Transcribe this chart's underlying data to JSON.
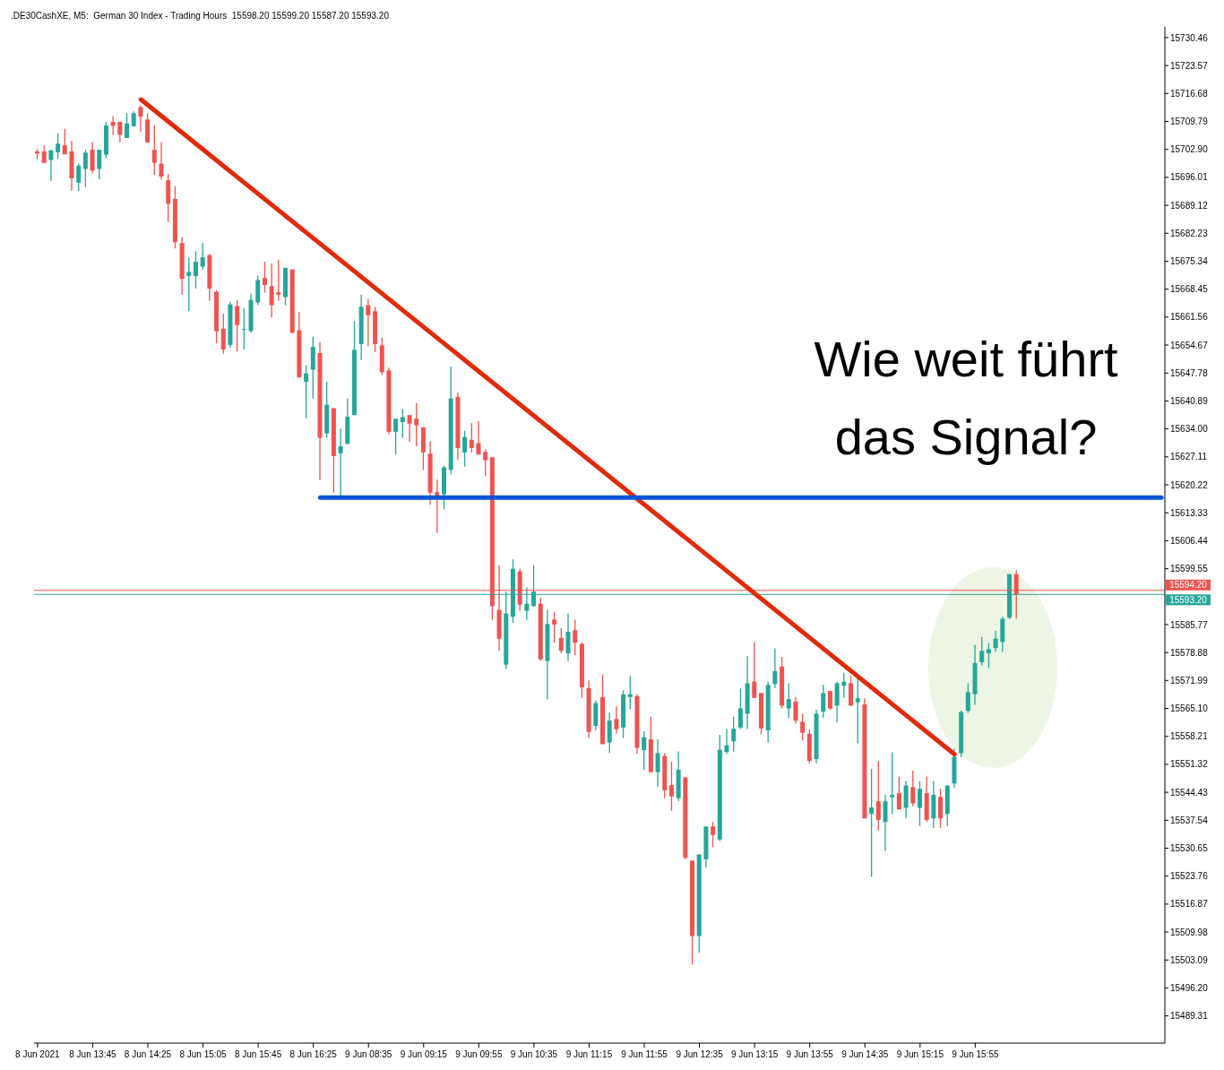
{
  "chart_data": {
    "type": "candlestick",
    "title": ".DE30CashXE, M5:  German 30 Index - Trading Hours  15598.20 15599.20 15587.20 15593.20",
    "categories": [
      "8 Jun 2021",
      null,
      null,
      null,
      null,
      null,
      null,
      null,
      "8 Jun 13:45",
      null,
      null,
      null,
      null,
      null,
      null,
      null,
      "8 Jun 14:25",
      null,
      null,
      null,
      null,
      null,
      null,
      null,
      "8 Jun 15:05",
      null,
      null,
      null,
      null,
      null,
      null,
      null,
      "8 Jun 15:45",
      null,
      null,
      null,
      null,
      null,
      null,
      null,
      "8 Jun 16:25",
      null,
      null,
      null,
      null,
      null,
      null,
      null,
      "9 Jun 08:35",
      null,
      null,
      null,
      null,
      null,
      null,
      null,
      "9 Jun 09:15",
      null,
      null,
      null,
      null,
      null,
      null,
      null,
      "9 Jun 09:55",
      null,
      null,
      null,
      null,
      null,
      null,
      null,
      "9 Jun 10:35",
      null,
      null,
      null,
      null,
      null,
      null,
      null,
      "9 Jun 11:15",
      null,
      null,
      null,
      null,
      null,
      null,
      null,
      "9 Jun 11:55",
      null,
      null,
      null,
      null,
      null,
      null,
      null,
      "9 Jun 12:35",
      null,
      null,
      null,
      null,
      null,
      null,
      null,
      "9 Jun 13:15",
      null,
      null,
      null,
      null,
      null,
      null,
      null,
      "9 Jun 13:55",
      null,
      null,
      null,
      null,
      null,
      null,
      null,
      "9 Jun 14:35",
      null,
      null,
      null,
      null,
      null,
      null,
      null,
      "9 Jun 15:15",
      null,
      null,
      null,
      null,
      null,
      null,
      null,
      "9 Jun 15:55",
      null,
      null,
      null,
      null,
      null,
      null,
      null,
      null,
      null,
      null,
      null,
      null,
      null,
      null,
      null,
      null,
      null,
      null,
      null,
      null,
      null,
      null,
      null,
      null,
      null,
      null,
      null
    ],
    "ohlc": [
      [
        15702.4,
        15703.0,
        15700.4,
        15701.9
      ],
      [
        15702.4,
        15703.9,
        15699.6,
        15699.6
      ],
      [
        15700.3,
        15702.7,
        15695.1,
        15702.7
      ],
      [
        15702.2,
        15706.9,
        15700.6,
        15704.3
      ],
      [
        15703.9,
        15708.0,
        15701.7,
        15701.7
      ],
      [
        15702.4,
        15705.0,
        15692.7,
        15695.8
      ],
      [
        15694.7,
        15699.4,
        15692.7,
        15698.9
      ],
      [
        15698.1,
        15702.8,
        15693.6,
        15702.1
      ],
      [
        15702.8,
        15704.7,
        15697.0,
        15697.7
      ],
      [
        15698.1,
        15702.8,
        15695.5,
        15702.8
      ],
      [
        15701.6,
        15709.7,
        15700.7,
        15708.8
      ],
      [
        15709.7,
        15711.2,
        15706.5,
        15708.7
      ],
      [
        15709.7,
        15709.7,
        15704.6,
        15706.5
      ],
      [
        15705.7,
        15711.8,
        15705.7,
        15709.3
      ],
      [
        15708.6,
        15712.3,
        15708.6,
        15711.8
      ],
      [
        15713.3,
        15713.8,
        15707.2,
        15711.0
      ],
      [
        15710.3,
        15711.8,
        15704.6,
        15704.6
      ],
      [
        15702.8,
        15708.8,
        15696.6,
        15699.6
      ],
      [
        15699.4,
        15704.7,
        15695.5,
        15696.2
      ],
      [
        15695.3,
        15696.8,
        15685.0,
        15689.5
      ],
      [
        15690.7,
        15693.8,
        15678.5,
        15680.0
      ],
      [
        15679.8,
        15681.3,
        15667.1,
        15671.0
      ],
      [
        15671.7,
        15676.3,
        15663.0,
        15672.7
      ],
      [
        15671.7,
        15677.8,
        15668.6,
        15675.2
      ],
      [
        15674.0,
        15679.8,
        15673.2,
        15676.3
      ],
      [
        15676.8,
        15677.2,
        15665.6,
        15668.6
      ],
      [
        15667.8,
        15668.2,
        15655.1,
        15658.1
      ],
      [
        15658.7,
        15662.4,
        15652.5,
        15653.6
      ],
      [
        15654.7,
        15665.3,
        15654.0,
        15664.7
      ],
      [
        15664.3,
        15665.8,
        15653.1,
        15659.6
      ],
      [
        15658.5,
        15663.8,
        15653.6,
        15658.6
      ],
      [
        15658.1,
        15667.3,
        15657.7,
        15665.8
      ],
      [
        15665.2,
        15671.8,
        15664.5,
        15670.7
      ],
      [
        15671.2,
        15675.2,
        15667.6,
        15669.5
      ],
      [
        15669.2,
        15674.8,
        15661.5,
        15664.5
      ],
      [
        15667.7,
        15675.7,
        15665.6,
        15667.1
      ],
      [
        15666.5,
        15673.7,
        15664.5,
        15673.7
      ],
      [
        15673.3,
        15673.3,
        15657.7,
        15657.7
      ],
      [
        15658.3,
        15662.8,
        15646.7,
        15646.7
      ],
      [
        15645.6,
        15649.7,
        15636.6,
        15647.7
      ],
      [
        15648.6,
        15656.7,
        15641.5,
        15654.2
      ],
      [
        15652.7,
        15655.4,
        15621.3,
        15631.8
      ],
      [
        15632.9,
        15645.6,
        15631.8,
        15640.0
      ],
      [
        15639.1,
        15639.1,
        15618.3,
        15627.3
      ],
      [
        15628.0,
        15634.1,
        15617.4,
        15629.7
      ],
      [
        15630.3,
        15641.5,
        15630.3,
        15637.0
      ],
      [
        15637.4,
        15660.6,
        15637.4,
        15653.5
      ],
      [
        15654.9,
        15667.1,
        15651.0,
        15664.1
      ],
      [
        15664.5,
        15666.0,
        15654.4,
        15662.0
      ],
      [
        15663.0,
        15664.1,
        15652.9,
        15654.9
      ],
      [
        15654.6,
        15656.5,
        15647.3,
        15648.0
      ],
      [
        15648.4,
        15649.1,
        15632.7,
        15633.3
      ],
      [
        15633.3,
        15636.5,
        15627.7,
        15636.5
      ],
      [
        15635.7,
        15638.9,
        15631.8,
        15636.9
      ],
      [
        15637.4,
        15637.4,
        15630.8,
        15635.3
      ],
      [
        15636.5,
        15640.4,
        15629.7,
        15634.9
      ],
      [
        15634.4,
        15634.4,
        15623.9,
        15628.2
      ],
      [
        15627.9,
        15631.0,
        15615.3,
        15618.3
      ],
      [
        15618.4,
        15621.5,
        15608.4,
        15617.6
      ],
      [
        15617.9,
        15624.9,
        15614.2,
        15624.5
      ],
      [
        15623.9,
        15649.4,
        15622.8,
        15641.5
      ],
      [
        15641.9,
        15643.0,
        15626.3,
        15629.3
      ],
      [
        15628.2,
        15633.5,
        15624.7,
        15632.0
      ],
      [
        15631.3,
        15635.4,
        15628.2,
        15629.3
      ],
      [
        15630.5,
        15635.9,
        15627.7,
        15627.7
      ],
      [
        15628.3,
        15629.0,
        15622.4,
        15626.3
      ],
      [
        15627.0,
        15627.0,
        15586.9,
        15590.3
      ],
      [
        15589.4,
        15600.4,
        15579.3,
        15582.3
      ],
      [
        15575.9,
        15593.9,
        15574.8,
        15588.5
      ],
      [
        15587.7,
        15601.9,
        15586.2,
        15599.5
      ],
      [
        15598.9,
        15599.5,
        15589.2,
        15590.7
      ],
      [
        15589.2,
        15595.0,
        15586.9,
        15590.9
      ],
      [
        15590.3,
        15600.4,
        15590.3,
        15593.9
      ],
      [
        15590.9,
        15592.4,
        15576.8,
        15577.2
      ],
      [
        15576.8,
        15589.4,
        15567.3,
        15585.9
      ],
      [
        15587.0,
        15588.9,
        15581.3,
        15585.8
      ],
      [
        15582.5,
        15584.9,
        15578.7,
        15579.3
      ],
      [
        15578.7,
        15588.5,
        15576.8,
        15584.0
      ],
      [
        15584.4,
        15587.0,
        15578.2,
        15581.3
      ],
      [
        15581.0,
        15581.4,
        15567.7,
        15570.3
      ],
      [
        15570.1,
        15572.0,
        15557.8,
        15559.3
      ],
      [
        15560.8,
        15567.1,
        15559.7,
        15566.4
      ],
      [
        15567.9,
        15573.5,
        15556.3,
        15556.3
      ],
      [
        15556.7,
        15564.1,
        15554.1,
        15562.1
      ],
      [
        15562.5,
        15565.6,
        15558.9,
        15560.0
      ],
      [
        15560.4,
        15569.6,
        15557.8,
        15568.6
      ],
      [
        15567.9,
        15573.1,
        15564.9,
        15568.6
      ],
      [
        15568.1,
        15568.7,
        15553.9,
        15555.4
      ],
      [
        15554.8,
        15559.5,
        15549.9,
        15558.0
      ],
      [
        15557.5,
        15563.1,
        15549.4,
        15549.4
      ],
      [
        15549.4,
        15557.5,
        15545.8,
        15554.1
      ],
      [
        15553.4,
        15554.1,
        15543.0,
        15544.9
      ],
      [
        15546.2,
        15551.9,
        15539.9,
        15543.4
      ],
      [
        15543.0,
        15554.5,
        15542.3,
        15550.0
      ],
      [
        15548.1,
        15548.1,
        15527.9,
        15528.3
      ],
      [
        15527.6,
        15527.6,
        15501.9,
        15509.0
      ],
      [
        15509.0,
        15529.1,
        15504.9,
        15529.1
      ],
      [
        15527.9,
        15536.0,
        15525.9,
        15536.0
      ],
      [
        15536.0,
        15537.1,
        15530.9,
        15533.9
      ],
      [
        15532.8,
        15558.6,
        15532.4,
        15554.9
      ],
      [
        15554.4,
        15560.1,
        15553.9,
        15556.0
      ],
      [
        15557.0,
        15563.1,
        15554.4,
        15560.1
      ],
      [
        15560.4,
        15570.0,
        15560.0,
        15565.1
      ],
      [
        15563.8,
        15578.0,
        15560.0,
        15571.3
      ],
      [
        15571.7,
        15581.4,
        15567.7,
        15567.7
      ],
      [
        15568.9,
        15568.9,
        15558.7,
        15560.2
      ],
      [
        15559.7,
        15571.7,
        15556.7,
        15570.9
      ],
      [
        15571.1,
        15579.9,
        15570.1,
        15574.3
      ],
      [
        15575.4,
        15577.8,
        15565.1,
        15565.8
      ],
      [
        15565.1,
        15571.3,
        15562.8,
        15567.4
      ],
      [
        15566.8,
        15567.9,
        15561.3,
        15562.1
      ],
      [
        15561.8,
        15563.8,
        15557.2,
        15559.1
      ],
      [
        15558.8,
        15559.9,
        15551.6,
        15552.2
      ],
      [
        15552.6,
        15564.8,
        15551.6,
        15563.8
      ],
      [
        15564.3,
        15570.9,
        15562.8,
        15568.9
      ],
      [
        15569.4,
        15569.4,
        15564.7,
        15565.1
      ],
      [
        15565.8,
        15571.7,
        15561.7,
        15571.3
      ],
      [
        15570.7,
        15573.9,
        15567.7,
        15571.7
      ],
      [
        15571.3,
        15573.2,
        15565.8,
        15565.8
      ],
      [
        15566.6,
        15572.6,
        15556.5,
        15567.6
      ],
      [
        15566.1,
        15567.6,
        15538.0,
        15538.0
      ],
      [
        15539.1,
        15550.2,
        15523.6,
        15540.7
      ],
      [
        15542.2,
        15552.1,
        15535.0,
        15537.6
      ],
      [
        15537.1,
        15543.8,
        15530.0,
        15542.2
      ],
      [
        15543.2,
        15554.3,
        15539.1,
        15543.8
      ],
      [
        15544.2,
        15548.3,
        15540.2,
        15540.2
      ],
      [
        15540.6,
        15547.2,
        15538.0,
        15546.1
      ],
      [
        15545.7,
        15549.8,
        15541.0,
        15541.7
      ],
      [
        15540.6,
        15547.2,
        15536.1,
        15545.3
      ],
      [
        15544.2,
        15548.3,
        15537.1,
        15537.6
      ],
      [
        15538.0,
        15547.2,
        15535.6,
        15543.8
      ],
      [
        15543.3,
        15545.3,
        15535.6,
        15538.0
      ],
      [
        15539.1,
        15546.1,
        15536.1,
        15546.1
      ],
      [
        15546.6,
        15555.2,
        15545.5,
        15553.2
      ],
      [
        15554.1,
        15564.6,
        15553.1,
        15564.2
      ],
      [
        15564.5,
        15571.3,
        15564.0,
        15569.1
      ],
      [
        15568.6,
        15580.8,
        15566.0,
        15576.3
      ],
      [
        15576.5,
        15582.7,
        15575.7,
        15579.3
      ],
      [
        15578.7,
        15581.2,
        15575.0,
        15579.7
      ],
      [
        15580.0,
        15584.2,
        15579.1,
        15582.3
      ],
      [
        15581.5,
        15587.7,
        15579.1,
        15587.2
      ],
      [
        15587.5,
        15598.2,
        15587.1,
        15598.2
      ],
      [
        15598.2,
        15599.2,
        15587.2,
        15593.2
      ],
      null,
      null,
      null,
      null,
      null,
      null,
      null,
      null,
      null,
      null,
      null,
      null,
      null,
      null,
      null,
      null,
      null,
      null,
      null,
      null,
      null
    ],
    "colors": [
      "#ef5350",
      "#ef5350",
      "#26a69a",
      "#26a69a",
      "#ef5350",
      "#ef5350",
      "#26a69a",
      "#26a69a",
      "#ef5350",
      "#26a69a",
      "#26a69a",
      "#ef5350",
      "#ef5350",
      "#26a69a",
      "#26a69a",
      "#ef5350",
      "#ef5350",
      "#ef5350",
      "#ef5350",
      "#ef5350",
      "#ef5350",
      "#ef5350",
      "#26a69a",
      "#26a69a",
      "#26a69a",
      "#ef5350",
      "#ef5350",
      "#ef5350",
      "#26a69a",
      "#ef5350",
      "#26a69a",
      "#26a69a",
      "#26a69a",
      "#ef5350",
      "#ef5350",
      "#ef5350",
      "#26a69a",
      "#ef5350",
      "#ef5350",
      "#26a69a",
      "#26a69a",
      "#ef5350",
      "#26a69a",
      "#ef5350",
      "#26a69a",
      "#26a69a",
      "#26a69a",
      "#26a69a",
      "#ef5350",
      "#ef5350",
      "#ef5350",
      "#ef5350",
      "#26a69a",
      "#26a69a",
      "#ef5350",
      "#ef5350",
      "#ef5350",
      "#ef5350",
      "#ef5350",
      "#26a69a",
      "#26a69a",
      "#ef5350",
      "#26a69a",
      "#ef5350",
      "#ef5350",
      "#ef5350",
      "#ef5350",
      "#ef5350",
      "#26a69a",
      "#26a69a",
      "#ef5350",
      "#26a69a",
      "#26a69a",
      "#ef5350",
      "#26a69a",
      "#ef5350",
      "#ef5350",
      "#26a69a",
      "#ef5350",
      "#ef5350",
      "#ef5350",
      "#26a69a",
      "#ef5350",
      "#26a69a",
      "#ef5350",
      "#26a69a",
      "#26a69a",
      "#ef5350",
      "#26a69a",
      "#ef5350",
      "#26a69a",
      "#ef5350",
      "#ef5350",
      "#26a69a",
      "#ef5350",
      "#ef5350",
      "#26a69a",
      "#26a69a",
      "#ef5350",
      "#26a69a",
      "#26a69a",
      "#26a69a",
      "#26a69a",
      "#26a69a",
      "#ef5350",
      "#ef5350",
      "#26a69a",
      "#26a69a",
      "#ef5350",
      "#26a69a",
      "#ef5350",
      "#ef5350",
      "#ef5350",
      "#26a69a",
      "#26a69a",
      "#ef5350",
      "#26a69a",
      "#26a69a",
      "#ef5350",
      "#26a69a",
      "#ef5350",
      "#26a69a",
      "#ef5350",
      "#26a69a",
      "#26a69a",
      "#ef5350",
      "#26a69a",
      "#ef5350",
      "#26a69a",
      "#ef5350",
      "#26a69a",
      "#ef5350",
      "#26a69a",
      "#26a69a",
      "#26a69a",
      "#26a69a",
      "#26a69a",
      "#26a69a",
      "#26a69a",
      "#26a69a",
      "#26a69a",
      "#26a69a",
      "#ef5350",
      null,
      null,
      null,
      null,
      null,
      null,
      null,
      null,
      null,
      null,
      null,
      null,
      null,
      null,
      null,
      null,
      null,
      null,
      null,
      null,
      null
    ],
    "series": [
      {
        "type": "line",
        "color": "#e22a0a",
        "values": [
          null,
          null,
          null,
          null,
          null,
          null,
          null,
          null,
          null,
          null,
          null,
          null,
          null,
          null,
          null,
          15715.2,
          null,
          null,
          null,
          null,
          null,
          null,
          null,
          null,
          null,
          null,
          null,
          null,
          null,
          null,
          null,
          null,
          null,
          null,
          null,
          null,
          null,
          null,
          null,
          null,
          null,
          null,
          null,
          null,
          null,
          null,
          null,
          null,
          null,
          null,
          null,
          null,
          null,
          null,
          null,
          null,
          null,
          null,
          null,
          null,
          null,
          null,
          null,
          null,
          null,
          null,
          null,
          null,
          null,
          null,
          null,
          null,
          null,
          null,
          null,
          null,
          null,
          null,
          null,
          null,
          null,
          null,
          null,
          null,
          null,
          null,
          null,
          null,
          null,
          null,
          null,
          null,
          null,
          null,
          null,
          null,
          null,
          null,
          null,
          null,
          null,
          null,
          null,
          null,
          null,
          null,
          null,
          null,
          null,
          null,
          null,
          null,
          null,
          null,
          null,
          null,
          null,
          null,
          null,
          null,
          null,
          null,
          null,
          null,
          null,
          null,
          null,
          null,
          null,
          null,
          null,
          null,
          null,
          15553.8,
          null,
          null,
          null,
          null,
          null,
          null,
          null,
          null,
          null,
          null,
          null,
          null,
          null,
          null,
          null,
          null,
          null,
          null,
          null,
          null,
          null,
          null,
          null,
          null,
          null,
          null,
          null,
          null,
          null,
          null
        ]
      },
      {
        "type": "line",
        "color": "#0a55d6",
        "values": [
          null,
          null,
          null,
          null,
          null,
          null,
          null,
          null,
          null,
          null,
          null,
          null,
          null,
          null,
          null,
          null,
          null,
          null,
          null,
          null,
          null,
          null,
          null,
          null,
          null,
          null,
          null,
          null,
          null,
          null,
          null,
          null,
          null,
          null,
          null,
          null,
          null,
          null,
          null,
          null,
          null,
          15617.1,
          null,
          null,
          null,
          null,
          null,
          null,
          null,
          null,
          null,
          null,
          null,
          null,
          null,
          null,
          null,
          null,
          null,
          null,
          null,
          null,
          null,
          null,
          null,
          null,
          null,
          null,
          null,
          null,
          null,
          null,
          null,
          null,
          null,
          null,
          null,
          null,
          null,
          null,
          null,
          null,
          null,
          null,
          null,
          null,
          null,
          null,
          null,
          null,
          null,
          null,
          null,
          null,
          null,
          null,
          null,
          null,
          null,
          null,
          null,
          null,
          null,
          null,
          null,
          null,
          null,
          null,
          null,
          null,
          null,
          null,
          null,
          null,
          null,
          null,
          null,
          null,
          null,
          null,
          null,
          null,
          null,
          null,
          null,
          null,
          null,
          null,
          null,
          null,
          null,
          null,
          null,
          null,
          null,
          null,
          null,
          null,
          null,
          null,
          null,
          null,
          null,
          null,
          null,
          null,
          null,
          null,
          null,
          null,
          null,
          null,
          null,
          null,
          null,
          null,
          null,
          null,
          null,
          null,
          null,
          null,
          null,
          15617.1
        ]
      }
    ],
    "ylim": [
      15482.6,
      15733.1
    ],
    "yticks": [
      15730.46,
      15723.57,
      15716.68,
      15709.79,
      {
        "value": 15702.9,
        "label": "15702.90"
      },
      15696.01,
      15689.12,
      15682.23,
      15675.34,
      15668.45,
      15661.56,
      15654.67,
      15647.78,
      15640.89,
      {
        "value": 15634.0,
        "label": "15634.00"
      },
      15627.11,
      15620.22,
      15613.33,
      15606.44,
      15599.55,
      15585.77,
      15578.88,
      15571.99,
      {
        "value": 15565.1,
        "label": "15565.10"
      },
      15558.21,
      15551.32,
      15544.43,
      15537.54,
      15530.65,
      15523.76,
      15516.87,
      15509.98,
      15503.09,
      {
        "value": 15496.2,
        "label": "15496.20"
      },
      15489.31
    ],
    "ref_lines": [
      {
        "axis": "y",
        "value": 15594.2,
        "label": "15594.20",
        "color": "#ef5350"
      },
      {
        "axis": "y",
        "value": 15593.2,
        "label": "15593.20",
        "color": "#26a69a"
      }
    ],
    "annotations": [
      "Wie weit führt das Signal?"
    ]
  }
}
